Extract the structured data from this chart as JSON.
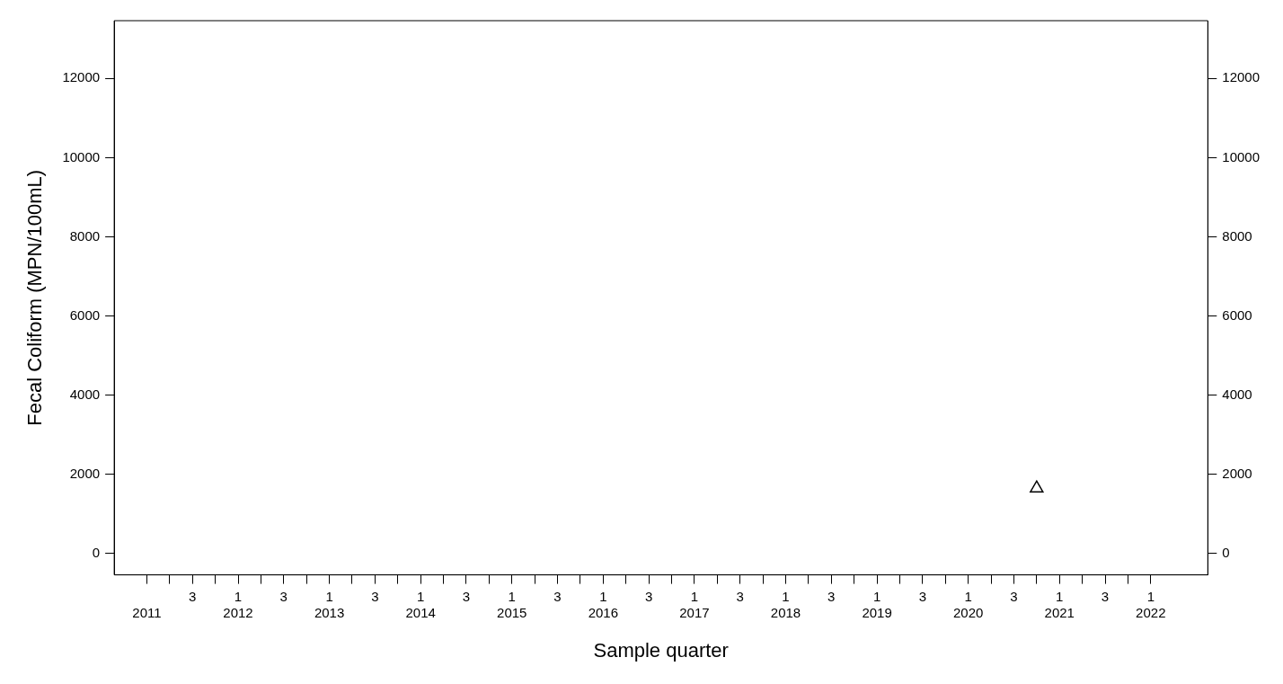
{
  "chart_data": {
    "type": "scatter",
    "xlabel": "Sample quarter",
    "ylabel": "Fecal Coliform (MPN/100mL)",
    "categories": [
      "\n2011",
      null,
      "3",
      null,
      "1\n2012",
      null,
      "3",
      null,
      "1\n2013",
      null,
      "3",
      null,
      "1\n2014",
      null,
      "3",
      null,
      "1\n2015",
      null,
      "3",
      null,
      "1\n2016",
      null,
      "3",
      null,
      "1\n2017",
      null,
      "3",
      null,
      "1\n2018",
      null,
      "3",
      null,
      "1\n2019",
      null,
      "3",
      null,
      "1\n2020",
      null,
      "3",
      null,
      "1\n2021",
      null,
      "3",
      null,
      "1\n2022"
    ],
    "values": [
      null,
      null,
      null,
      null,
      null,
      null,
      null,
      null,
      null,
      null,
      null,
      null,
      null,
      null,
      null,
      null,
      null,
      null,
      null,
      null,
      null,
      null,
      null,
      null,
      null,
      null,
      null,
      null,
      null,
      null,
      null,
      null,
      null,
      null,
      null,
      null,
      null,
      null,
      null,
      1650,
      null,
      null,
      null,
      null,
      null
    ],
    "marker": "triangle",
    "grid": false,
    "legend": false,
    "ylim": [
      -540,
      13460
    ],
    "yticks": [
      0,
      2000,
      4000,
      6000,
      8000,
      10000,
      12000
    ],
    "y2lim": [
      -540,
      13460
    ],
    "y2ticks": [
      0,
      2000,
      4000,
      6000,
      8000,
      10000,
      12000
    ],
    "color": "#000000"
  }
}
